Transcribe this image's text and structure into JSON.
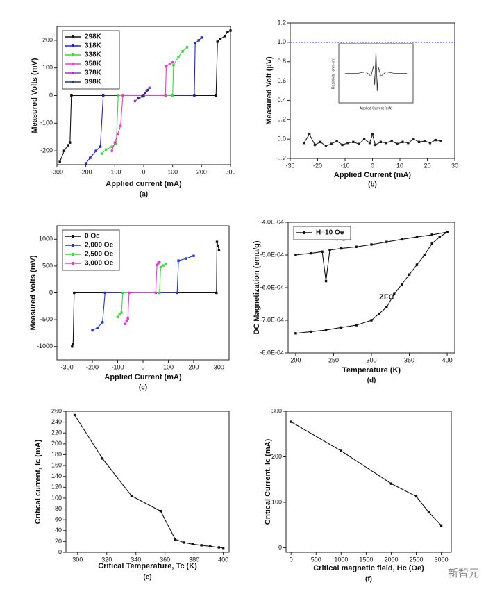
{
  "chart_data": [
    {
      "type": "line",
      "xlabel": "Applied current (mA)",
      "ylabel": "Measured Volts (mV)",
      "caption": "(a)",
      "xlim": [
        -300,
        300
      ],
      "xticks": [
        -300,
        -200,
        -100,
        0,
        100,
        200,
        300
      ],
      "ylim": [
        -250,
        250
      ],
      "yticks": [
        -200,
        -100,
        0,
        100,
        200
      ],
      "legend": "upper left",
      "series": [
        {
          "name": "298K",
          "color": "#111111",
          "x": [
            -290,
            -275,
            -262,
            -255,
            -250,
            0,
            250,
            255,
            265,
            280,
            290,
            300
          ],
          "values": [
            -240,
            -200,
            -180,
            -170,
            0,
            0,
            0,
            195,
            205,
            215,
            230,
            235
          ]
        },
        {
          "name": "318K",
          "color": "#2222cc",
          "x": [
            -200,
            -185,
            -165,
            -150,
            -140,
            175,
            178,
            190,
            200
          ],
          "values": [
            -245,
            -225,
            -200,
            -185,
            0,
            0,
            190,
            200,
            210
          ]
        },
        {
          "name": "338K",
          "color": "#33dd33",
          "x": [
            -145,
            -130,
            -110,
            -95,
            -88,
            100,
            103,
            120,
            135,
            150
          ],
          "values": [
            -210,
            -195,
            -185,
            -175,
            0,
            0,
            110,
            140,
            160,
            175
          ]
        },
        {
          "name": "358K",
          "color": "#ff33cc",
          "x": [
            -110,
            -100,
            -90,
            -80,
            -72,
            75,
            78,
            90,
            100
          ],
          "values": [
            -200,
            -170,
            -140,
            -110,
            0,
            0,
            105,
            115,
            120
          ]
        },
        {
          "name": "378K",
          "color": "#9933cc",
          "x": [
            -30,
            -15,
            0,
            10,
            20
          ],
          "values": [
            -20,
            -8,
            2,
            18,
            28
          ]
        },
        {
          "name": "398K",
          "color": "#223377",
          "x": [
            -20,
            -5,
            5,
            15
          ],
          "values": [
            -10,
            -3,
            8,
            20
          ]
        }
      ]
    },
    {
      "type": "line",
      "xlabel": "Applied Current (mA)",
      "ylabel": "Measured Volt (µV)",
      "caption": "(b)",
      "xlim": [
        -30,
        30
      ],
      "xticks": [
        -30,
        -20,
        -10,
        0,
        10,
        20,
        30
      ],
      "ylim": [
        -0.2,
        1.2
      ],
      "yticks": [
        -0.2,
        {
          "value": 0,
          "label": "0.0"
        },
        0.2,
        0.4,
        0.6,
        0.8,
        {
          "value": 1,
          "label": "1.0"
        },
        1.2
      ],
      "hline": 1,
      "hline_color": "#3333cc",
      "series": [
        {
          "color": "#222222",
          "x": [
            -25,
            -23,
            -21,
            -19,
            -17,
            -15,
            -13,
            -11,
            -9,
            -7,
            -5,
            -3,
            -1,
            0,
            1,
            3,
            5,
            7,
            9,
            11,
            13,
            15,
            17,
            19,
            21,
            23,
            25
          ],
          "values": [
            -0.04,
            0.05,
            -0.06,
            -0.03,
            -0.07,
            -0.05,
            -0.02,
            -0.06,
            -0.04,
            -0.03,
            -0.05,
            0.0,
            -0.04,
            0.05,
            -0.06,
            -0.03,
            -0.04,
            -0.02,
            -0.05,
            -0.03,
            -0.04,
            0.0,
            -0.03,
            -0.02,
            -0.04,
            -0.01,
            -0.02
          ]
        }
      ],
      "inset": {
        "xlabel": "Applied Current (mA)",
        "ylabel": "Resistivity (ohm-cm)",
        "xlim": [
          -30,
          30
        ],
        "ylim": [
          -2,
          2
        ],
        "x": [
          -25,
          -15,
          -8,
          -4,
          -2,
          -1,
          0,
          1,
          2,
          4,
          8,
          15,
          25
        ],
        "values": [
          0,
          0,
          0.1,
          -0.2,
          0.5,
          -0.8,
          1.6,
          -1.2,
          0.4,
          -0.2,
          0.1,
          0,
          0
        ]
      }
    },
    {
      "type": "line",
      "xlabel": "Applied Current (mA)",
      "ylabel": "Measured Volts (mV)",
      "caption": "(c)",
      "xlim": [
        -340,
        340
      ],
      "xticks": [
        -300,
        -200,
        -100,
        0,
        100,
        200,
        300
      ],
      "ylim": [
        -1250,
        1250
      ],
      "yticks": [
        -1000,
        -500,
        0,
        500,
        1000
      ],
      "legend": "upper left",
      "series": [
        {
          "name": "0 Oe",
          "color": "#111111",
          "x": [
            -280,
            -276,
            -272,
            290,
            292,
            296,
            300
          ],
          "values": [
            -1000,
            -950,
            0,
            0,
            950,
            880,
            800
          ]
        },
        {
          "name": "2,000 Oe",
          "color": "#2233cc",
          "x": [
            -200,
            -180,
            -160,
            -150,
            135,
            140,
            170,
            200
          ],
          "values": [
            -700,
            -650,
            -550,
            0,
            0,
            600,
            640,
            690
          ]
        },
        {
          "name": "2,500 Oe",
          "color": "#33dd33",
          "x": [
            -100,
            -92,
            -85,
            -80,
            65,
            70,
            80,
            90
          ],
          "values": [
            -450,
            -400,
            -370,
            0,
            0,
            480,
            510,
            540
          ]
        },
        {
          "name": "3,000 Oe",
          "color": "#ee33dd",
          "x": [
            -70,
            -65,
            -60,
            -55,
            50,
            55,
            60,
            65
          ],
          "values": [
            -580,
            -520,
            -480,
            0,
            0,
            520,
            550,
            570
          ]
        }
      ]
    },
    {
      "type": "line",
      "xlabel": "Temperature (K)",
      "ylabel": "DC Magnetization (emu/g)",
      "caption": "(d)",
      "xlim": [
        190,
        410
      ],
      "xticks": [
        200,
        250,
        300,
        350,
        400
      ],
      "ylim": [
        -0.0008,
        -0.0004
      ],
      "yticks": [
        {
          "value": -0.0008,
          "label": "-8.0E-04"
        },
        {
          "value": -0.0007,
          "label": "-7.0E-04"
        },
        {
          "value": -0.0006,
          "label": "-6.0E-04"
        },
        {
          "value": -0.0005,
          "label": "-5.0E-04"
        },
        {
          "value": -0.0004,
          "label": "-4.0E-04"
        }
      ],
      "legend": "upper left",
      "series": [
        {
          "name": "H=10 Oe",
          "label": "FC",
          "color": "#111111",
          "x": [
            200,
            220,
            235,
            240,
            245,
            260,
            280,
            300,
            320,
            340,
            360,
            380,
            400
          ],
          "values": [
            -0.0005,
            -0.000495,
            -0.00049,
            -0.00058,
            -0.000485,
            -0.00048,
            -0.000475,
            -0.000468,
            -0.00046,
            -0.000452,
            -0.000445,
            -0.000438,
            -0.00043
          ]
        },
        {
          "label": "ZFC",
          "color": "#111111",
          "x": [
            200,
            220,
            240,
            260,
            280,
            300,
            310,
            320,
            330,
            340,
            350,
            360,
            370,
            380,
            390,
            400
          ],
          "values": [
            -0.00074,
            -0.000735,
            -0.00073,
            -0.000722,
            -0.000715,
            -0.0007,
            -0.00068,
            -0.00066,
            -0.00062,
            -0.00059,
            -0.00056,
            -0.00053,
            -0.0005,
            -0.000465,
            -0.000445,
            -0.00043
          ]
        }
      ]
    },
    {
      "type": "line",
      "xlabel": "Critical Temperature, Tc (K)",
      "ylabel": "Critical current, Ic (mA)",
      "caption": "(e)",
      "xlim": [
        292,
        404
      ],
      "xticks": [
        300,
        320,
        340,
        360,
        380,
        400
      ],
      "ylim": [
        0,
        260
      ],
      "yticks": [
        0,
        20,
        40,
        60,
        80,
        100,
        120,
        140,
        160,
        180,
        200,
        220,
        240,
        260
      ],
      "series": [
        {
          "color": "#111111",
          "x": [
            298,
            317,
            337,
            357,
            367,
            373,
            379,
            385,
            391,
            397,
            400
          ],
          "values": [
            253,
            173,
            104,
            76,
            24,
            18,
            15,
            13,
            11,
            9,
            8
          ]
        }
      ]
    },
    {
      "type": "line",
      "xlabel": "Critical magnetic field, Hc (Oe)",
      "ylabel": "Critical Current, Ic (mA)",
      "caption": "(f)",
      "xlim": [
        -100,
        3200
      ],
      "xticks": [
        0,
        500,
        1000,
        1500,
        2000,
        2500,
        3000
      ],
      "ylim": [
        -10,
        300
      ],
      "yticks": [
        0,
        100,
        200,
        300
      ],
      "series": [
        {
          "color": "#111111",
          "x": [
            0,
            1000,
            2000,
            2500,
            2750,
            3000
          ],
          "values": [
            277,
            213,
            141,
            113,
            78,
            49
          ]
        }
      ]
    }
  ],
  "watermark": "新智元"
}
